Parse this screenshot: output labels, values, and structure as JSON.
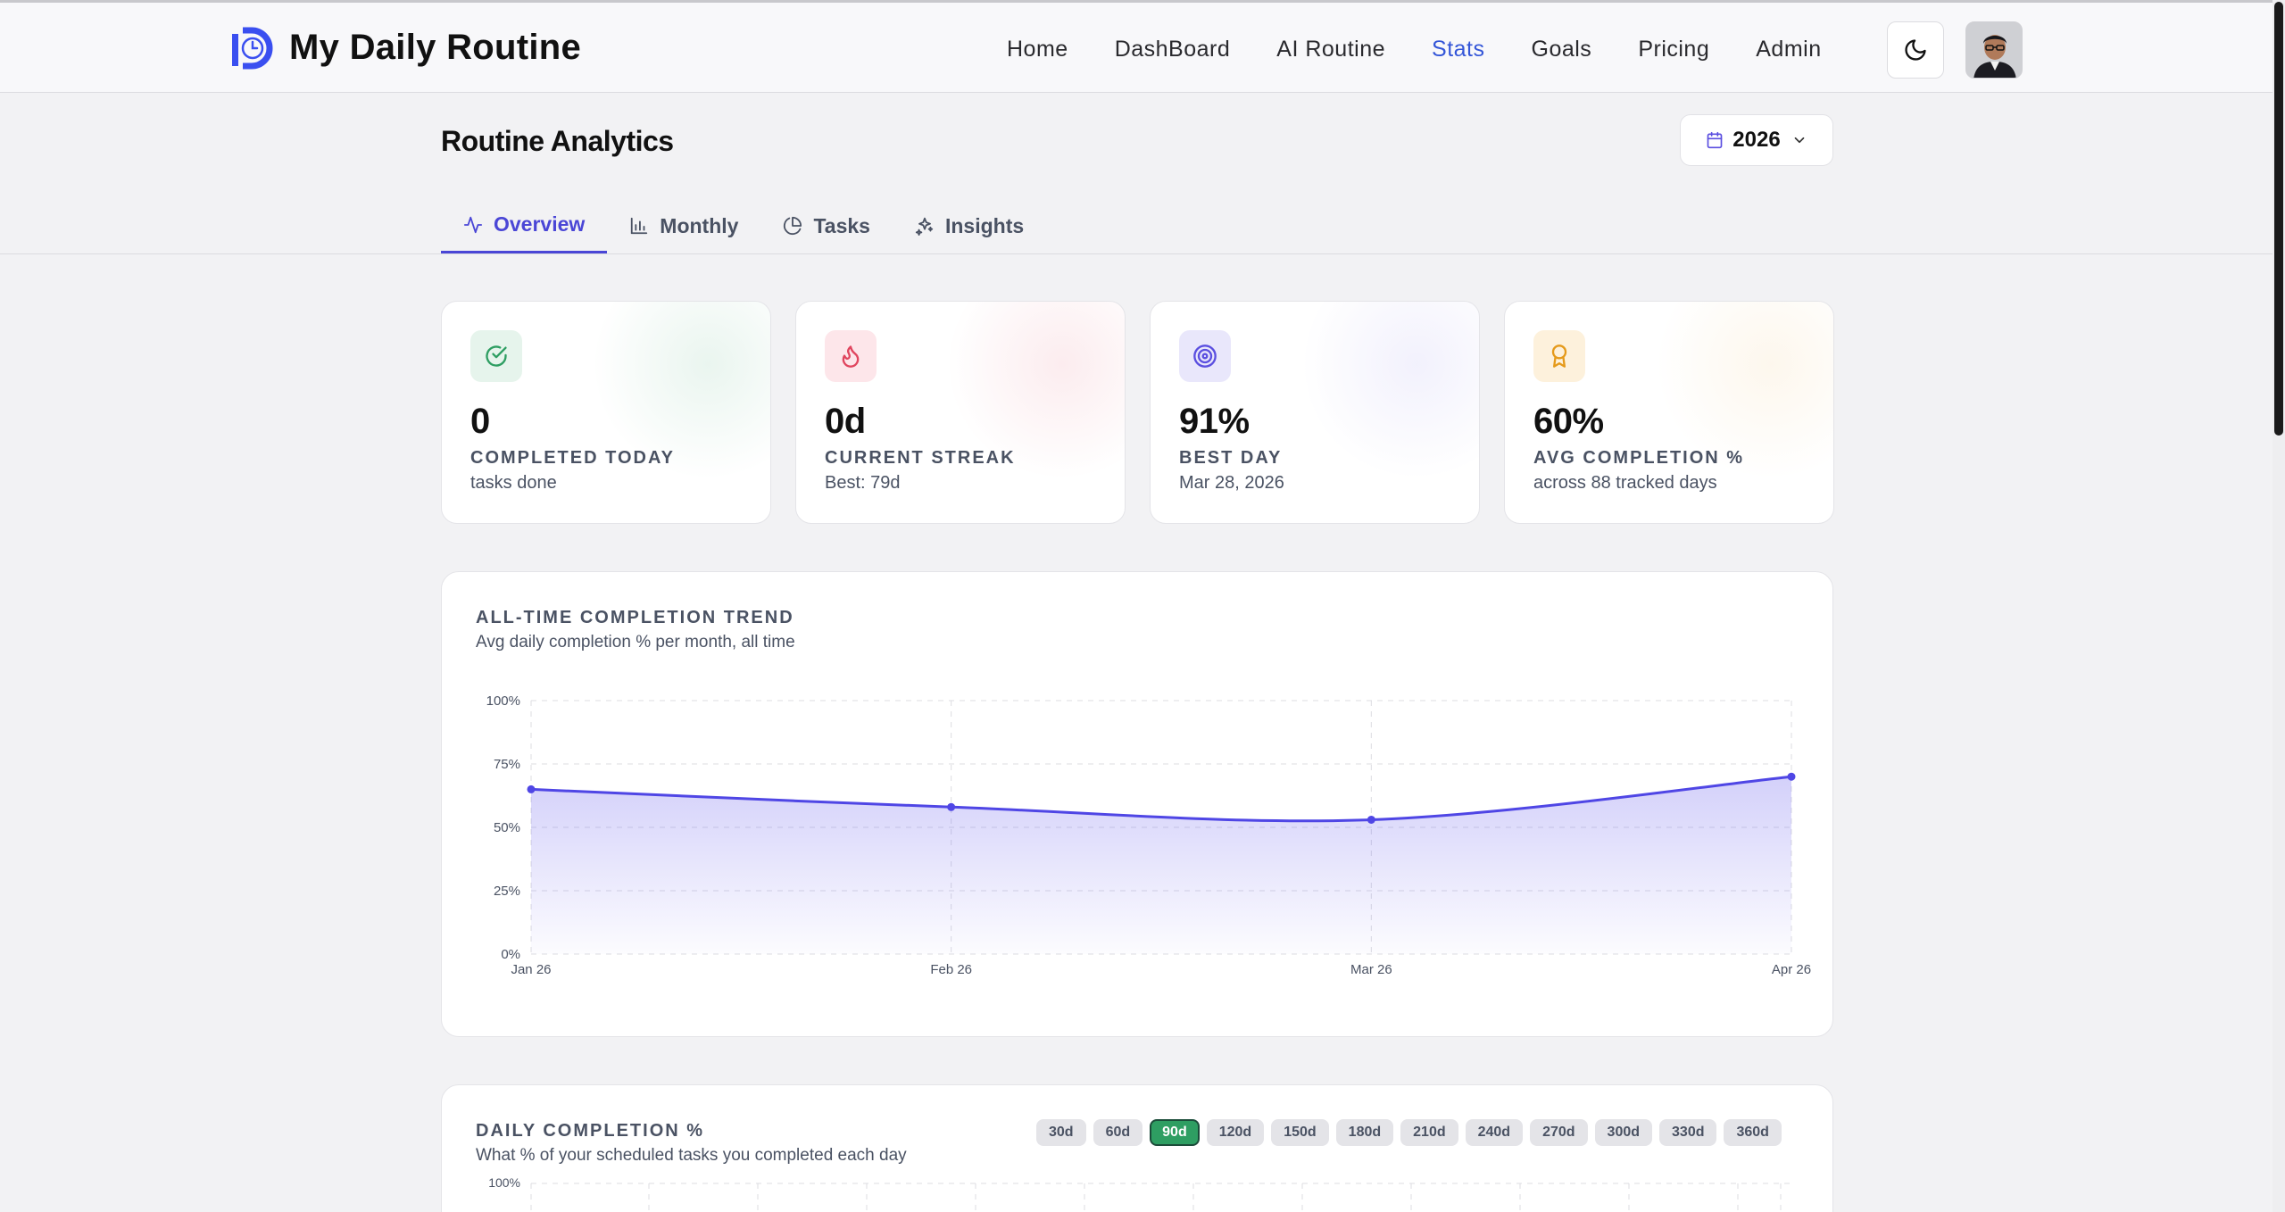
{
  "app": {
    "title": "My Daily Routine"
  },
  "nav": {
    "links": [
      {
        "label": "Home",
        "active": false
      },
      {
        "label": "DashBoard",
        "active": false
      },
      {
        "label": "AI Routine",
        "active": false
      },
      {
        "label": "Stats",
        "active": true
      },
      {
        "label": "Goals",
        "active": false
      },
      {
        "label": "Pricing",
        "active": false
      },
      {
        "label": "Admin",
        "active": false
      }
    ],
    "theme_toggle_icon": "moon-icon",
    "accent_color": "#3456d8"
  },
  "page": {
    "title": "Routine Analytics",
    "year": "2026"
  },
  "tabs": [
    {
      "label": "Overview",
      "icon": "activity-icon",
      "active": true
    },
    {
      "label": "Monthly",
      "icon": "bar-chart-icon",
      "active": false
    },
    {
      "label": "Tasks",
      "icon": "pie-chart-icon",
      "active": false
    },
    {
      "label": "Insights",
      "icon": "sparkles-icon",
      "active": false
    }
  ],
  "stats": [
    {
      "value": "0",
      "label": "COMPLETED TODAY",
      "sub": "tasks done",
      "icon": "check-circle-icon",
      "color": "#2e9e62"
    },
    {
      "value": "0d",
      "label": "CURRENT STREAK",
      "sub": "Best: 79d",
      "icon": "flame-icon",
      "color": "#e0455e"
    },
    {
      "value": "91%",
      "label": "BEST DAY",
      "sub": "Mar 28, 2026",
      "icon": "target-icon",
      "color": "#5b4fe0"
    },
    {
      "value": "60%",
      "label": "AVG COMPLETION %",
      "sub": "across 88 tracked days",
      "icon": "award-icon",
      "color": "#e59a1b"
    }
  ],
  "trend": {
    "title": "ALL-TIME COMPLETION TREND",
    "subtitle": "Avg daily completion % per month, all time"
  },
  "daily": {
    "title": "DAILY COMPLETION %",
    "subtitle": "What % of your scheduled tasks you completed each day",
    "ranges": [
      "30d",
      "60d",
      "90d",
      "120d",
      "150d",
      "180d",
      "210d",
      "240d",
      "270d",
      "300d",
      "330d",
      "360d"
    ],
    "active_range": "90d",
    "y_top_tick": "100%"
  },
  "chart_data": [
    {
      "type": "area",
      "x": [
        "Jan 26",
        "Feb 26",
        "Mar 26",
        "Apr 26"
      ],
      "series": [
        {
          "values": [
            65,
            58,
            53,
            70
          ]
        }
      ],
      "yticks": [
        "0%",
        "25%",
        "50%",
        "75%",
        "100%"
      ],
      "ylim": [
        0,
        100
      ],
      "grid": true,
      "color": "#4f46e5"
    }
  ]
}
